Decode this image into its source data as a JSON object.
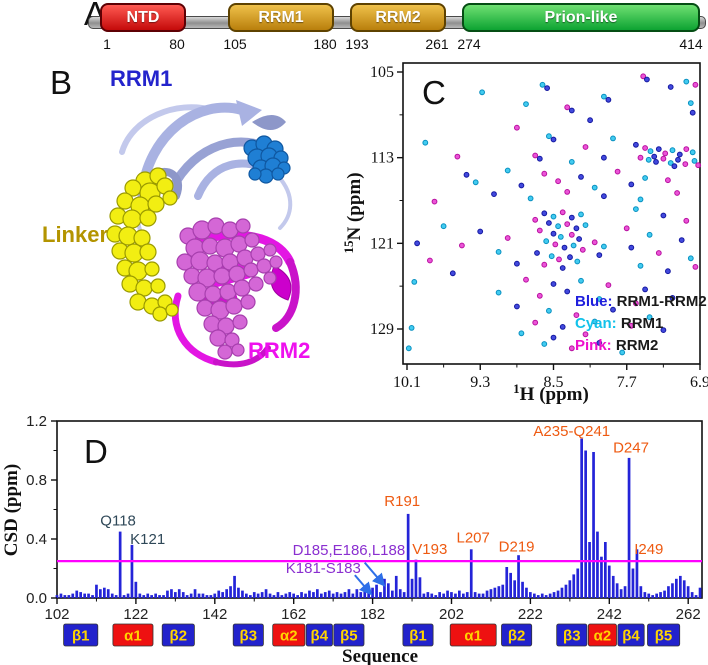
{
  "figure": {
    "panels": {
      "a": "A",
      "b": "B",
      "c": "C",
      "d": "D"
    }
  },
  "panelA": {
    "domains": [
      {
        "name": "NTD",
        "start": "1",
        "end": "80",
        "fill_top": "#ff5a52",
        "fill_bottom": "#c40a0a",
        "border": "#5e0004"
      },
      {
        "name": "RRM1",
        "start": "105",
        "end": "180",
        "fill_top": "#efc14a",
        "fill_bottom": "#b97f0c",
        "border": "#5e4200"
      },
      {
        "name": "RRM2",
        "start": "193",
        "end": "261",
        "fill_top": "#efc14a",
        "fill_bottom": "#b97f0c",
        "border": "#5e4200"
      },
      {
        "name": "Prion-like",
        "start": "274",
        "end": "414",
        "fill_top": "#6fe072",
        "fill_bottom": "#0da332",
        "border": "#054d14"
      }
    ]
  },
  "panelB": {
    "labels": {
      "rrm1": {
        "text": "RRM1",
        "color": "#2424cc"
      },
      "linker": {
        "text": "Linker",
        "color": "#b39400"
      },
      "rrm2": {
        "text": "RRM2",
        "color": "#ee10ee"
      }
    }
  },
  "panelC": {
    "xlabel_sup": "1",
    "xlabel_base": "H (ppm)",
    "ylabel_sup": "15",
    "ylabel_base": "N (ppm)",
    "legend": [
      {
        "key": "Blue:",
        "value": " RRM1-RRM2",
        "color": "#2020dd"
      },
      {
        "key": "Cyan:",
        "value": " RRM1",
        "color": "#12c2ea"
      },
      {
        "key": "Pink:",
        "value": " RRM2",
        "color": "#ee10cc"
      }
    ]
  },
  "panelD": {
    "ylabel": "CSD (ppm)",
    "xlabel": "Sequence"
  },
  "chart_data": [
    {
      "id": "panelC",
      "type": "scatter",
      "xlabel": "1H (ppm)",
      "ylabel": "15N (ppm)",
      "x_range": [
        10.1,
        6.9
      ],
      "y_range": [
        105,
        129
      ],
      "x_ticks": [
        10.1,
        9.3,
        8.5,
        7.7,
        6.9
      ],
      "y_ticks": [
        105,
        113,
        121,
        129
      ],
      "legend_position": "bottom-right",
      "series": [
        {
          "code": "b",
          "name": "RRM1-RRM2",
          "fill": "#2830d8",
          "stroke": "#1418a0"
        },
        {
          "code": "c",
          "name": "RRM1",
          "fill": "#28c4ee",
          "stroke": "#0890c0"
        },
        {
          "code": "p",
          "name": "RRM2",
          "fill": "#e83cd2",
          "stroke": "#b810a0"
        }
      ],
      "points": [
        [
          7.52,
          105.4,
          "p"
        ],
        [
          7.48,
          105.7,
          "b"
        ],
        [
          7.05,
          105.9,
          "c"
        ],
        [
          6.95,
          106.2,
          "p"
        ],
        [
          8.62,
          106.2,
          "c"
        ],
        [
          8.57,
          106.5,
          "b"
        ],
        [
          9.28,
          106.9,
          "c"
        ],
        [
          7.22,
          106.4,
          "b"
        ],
        [
          7.95,
          107.3,
          "c"
        ],
        [
          7.9,
          107.6,
          "b"
        ],
        [
          7.0,
          107.9,
          "c"
        ],
        [
          8.35,
          108.3,
          "p"
        ],
        [
          8.3,
          108.6,
          "b"
        ],
        [
          6.98,
          108.8,
          "b"
        ],
        [
          8.8,
          108.0,
          "c"
        ],
        [
          7.6,
          111.8,
          "b"
        ],
        [
          7.5,
          112.1,
          "p"
        ],
        [
          7.44,
          112.4,
          "c"
        ],
        [
          7.35,
          112.2,
          "b"
        ],
        [
          7.28,
          112.6,
          "p"
        ],
        [
          7.2,
          112.3,
          "c"
        ],
        [
          7.12,
          112.7,
          "b"
        ],
        [
          7.05,
          112.2,
          "p"
        ],
        [
          6.98,
          112.5,
          "c"
        ],
        [
          7.55,
          113.0,
          "p"
        ],
        [
          7.46,
          113.2,
          "c"
        ],
        [
          7.38,
          113.4,
          "b"
        ],
        [
          7.3,
          113.1,
          "p"
        ],
        [
          7.22,
          113.5,
          "c"
        ],
        [
          7.14,
          113.2,
          "b"
        ],
        [
          7.06,
          113.6,
          "p"
        ],
        [
          6.96,
          113.3,
          "c"
        ],
        [
          6.92,
          113.7,
          "p"
        ],
        [
          7.4,
          112.9,
          "b"
        ],
        [
          7.18,
          113.8,
          "b"
        ],
        [
          8.1,
          109.5,
          "b"
        ],
        [
          8.9,
          110.2,
          "p"
        ],
        [
          9.9,
          111.6,
          "c"
        ],
        [
          9.55,
          112.9,
          "p"
        ],
        [
          8.55,
          111.0,
          "c"
        ],
        [
          8.5,
          111.3,
          "b"
        ],
        [
          8.15,
          112.0,
          "p"
        ],
        [
          7.85,
          111.2,
          "c"
        ],
        [
          8.7,
          112.8,
          "p"
        ],
        [
          8.65,
          113.1,
          "b"
        ],
        [
          8.3,
          113.4,
          "c"
        ],
        [
          7.95,
          113.0,
          "b"
        ],
        [
          9.45,
          114.6,
          "b"
        ],
        [
          9.0,
          114.2,
          "c"
        ],
        [
          8.6,
          114.5,
          "p"
        ],
        [
          8.2,
          114.8,
          "b"
        ],
        [
          7.8,
          114.3,
          "p"
        ],
        [
          7.5,
          114.9,
          "c"
        ],
        [
          9.35,
          115.3,
          "c"
        ],
        [
          8.85,
          115.6,
          "b"
        ],
        [
          8.45,
          115.2,
          "p"
        ],
        [
          8.05,
          115.8,
          "c"
        ],
        [
          7.65,
          115.5,
          "b"
        ],
        [
          7.25,
          115.1,
          "p"
        ],
        [
          9.8,
          117.1,
          "p"
        ],
        [
          9.15,
          116.4,
          "b"
        ],
        [
          8.75,
          116.8,
          "c"
        ],
        [
          8.35,
          116.2,
          "p"
        ],
        [
          7.95,
          116.6,
          "b"
        ],
        [
          7.55,
          116.9,
          "c"
        ],
        [
          7.15,
          116.3,
          "p"
        ],
        [
          8.6,
          118.2,
          "b"
        ],
        [
          8.5,
          118.5,
          "c"
        ],
        [
          8.4,
          118.1,
          "p"
        ],
        [
          8.3,
          118.6,
          "b"
        ],
        [
          8.2,
          118.3,
          "c"
        ],
        [
          8.7,
          118.8,
          "p"
        ],
        [
          8.55,
          119.1,
          "b"
        ],
        [
          8.45,
          119.4,
          "c"
        ],
        [
          8.35,
          119.2,
          "p"
        ],
        [
          8.25,
          119.6,
          "b"
        ],
        [
          8.15,
          119.3,
          "c"
        ],
        [
          8.65,
          119.8,
          "p"
        ],
        [
          8.5,
          120.1,
          "b"
        ],
        [
          8.42,
          120.4,
          "c"
        ],
        [
          8.3,
          120.2,
          "p"
        ],
        [
          8.22,
          120.6,
          "b"
        ],
        [
          8.58,
          120.8,
          "c"
        ],
        [
          8.48,
          121.1,
          "p"
        ],
        [
          8.38,
          121.4,
          "b"
        ],
        [
          8.28,
          121.2,
          "c"
        ],
        [
          8.18,
          121.6,
          "p"
        ],
        [
          8.68,
          121.9,
          "b"
        ],
        [
          8.52,
          122.2,
          "c"
        ],
        [
          8.44,
          122.5,
          "p"
        ],
        [
          8.32,
          122.3,
          "b"
        ],
        [
          8.24,
          122.7,
          "c"
        ],
        [
          8.6,
          123.0,
          "p"
        ],
        [
          8.4,
          123.3,
          "b"
        ],
        [
          9.0,
          120.5,
          "p"
        ],
        [
          9.1,
          121.8,
          "c"
        ],
        [
          8.9,
          122.9,
          "b"
        ],
        [
          8.05,
          120.9,
          "p"
        ],
        [
          7.95,
          121.3,
          "c"
        ],
        [
          8.0,
          122.1,
          "b"
        ],
        [
          9.3,
          119.9,
          "b"
        ],
        [
          9.5,
          121.2,
          "p"
        ],
        [
          9.99,
          121.0,
          "b"
        ],
        [
          7.6,
          117.8,
          "c"
        ],
        [
          7.3,
          118.4,
          "b"
        ],
        [
          7.05,
          118.9,
          "p"
        ],
        [
          7.7,
          119.6,
          "p"
        ],
        [
          7.45,
          120.2,
          "c"
        ],
        [
          7.1,
          120.7,
          "b"
        ],
        [
          7.65,
          121.4,
          "b"
        ],
        [
          7.35,
          121.9,
          "p"
        ],
        [
          7.0,
          122.4,
          "c"
        ],
        [
          7.55,
          123.1,
          "c"
        ],
        [
          7.25,
          123.6,
          "b"
        ],
        [
          6.95,
          123.2,
          "p"
        ],
        [
          9.7,
          119.4,
          "c"
        ],
        [
          9.85,
          122.6,
          "p"
        ],
        [
          9.6,
          123.8,
          "b"
        ],
        [
          10.02,
          124.6,
          "c"
        ],
        [
          8.8,
          124.4,
          "p"
        ],
        [
          8.5,
          124.8,
          "b"
        ],
        [
          8.2,
          124.5,
          "c"
        ],
        [
          7.9,
          124.9,
          "p"
        ],
        [
          7.5,
          125.3,
          "b"
        ],
        [
          9.1,
          125.6,
          "c"
        ],
        [
          8.65,
          125.9,
          "p"
        ],
        [
          8.35,
          125.5,
          "b"
        ],
        [
          8.0,
          126.2,
          "c"
        ],
        [
          7.6,
          126.6,
          "p"
        ],
        [
          7.2,
          126.1,
          "b"
        ],
        [
          8.9,
          126.9,
          "b"
        ],
        [
          8.55,
          127.3,
          "c"
        ],
        [
          8.25,
          127.7,
          "p"
        ],
        [
          7.85,
          127.2,
          "b"
        ],
        [
          7.45,
          127.9,
          "c"
        ],
        [
          8.7,
          128.4,
          "p"
        ],
        [
          8.4,
          128.8,
          "b"
        ],
        [
          8.05,
          128.3,
          "c"
        ],
        [
          7.65,
          128.7,
          "p"
        ],
        [
          8.85,
          129.4,
          "c"
        ],
        [
          8.5,
          129.8,
          "b"
        ],
        [
          8.15,
          129.5,
          "p"
        ],
        [
          10.05,
          128.9,
          "c"
        ],
        [
          10.08,
          130.8,
          "c"
        ],
        [
          7.3,
          129.1,
          "b"
        ],
        [
          8.6,
          130.4,
          "c"
        ],
        [
          8.3,
          130.8,
          "p"
        ],
        [
          8.0,
          130.3,
          "b"
        ],
        [
          7.75,
          131.2,
          "c"
        ]
      ]
    },
    {
      "id": "panelD",
      "type": "bar",
      "xlabel": "Sequence",
      "ylabel": "CSD (ppm)",
      "ylim": [
        0,
        1.2
      ],
      "x_ticks": [
        102,
        122,
        142,
        162,
        182,
        202,
        222,
        242,
        262
      ],
      "y_ticks": [
        0.0,
        0.4,
        0.8,
        1.2
      ],
      "bar_color": "#2424d8",
      "threshold": 0.25,
      "threshold_color": "#ff00ff",
      "bars_start": 102,
      "bars": [
        0.02,
        0.03,
        0.02,
        0.02,
        0.03,
        0.05,
        0.04,
        0.03,
        0.03,
        0.02,
        0.09,
        0.06,
        0.07,
        0.06,
        0.03,
        0.02,
        0.45,
        0.02,
        0.03,
        0.36,
        0.11,
        0.03,
        0.02,
        0.03,
        0.02,
        0.03,
        0.02,
        0.02,
        0.05,
        0.06,
        0.04,
        0.06,
        0.04,
        0.02,
        0.03,
        0.06,
        0.03,
        0.03,
        0.02,
        0.02,
        0.03,
        0.05,
        0.04,
        0.06,
        0.08,
        0.15,
        0.07,
        0.05,
        0.03,
        0.02,
        0.04,
        0.03,
        0.04,
        0.06,
        0.03,
        0.02,
        0.04,
        0.02,
        0.03,
        0.04,
        0.03,
        0.02,
        0.04,
        0.03,
        0.05,
        0.04,
        0.06,
        0.03,
        0.04,
        0.05,
        0.03,
        0.04,
        0.03,
        0.04,
        0.06,
        0.03,
        0.06,
        0.04,
        0.05,
        0.08,
        0.07,
        0.09,
        0.04,
        0.13,
        0.1,
        0.05,
        0.15,
        0.06,
        0.04,
        0.57,
        0.13,
        0.26,
        0.14,
        0.03,
        0.04,
        0.03,
        0.02,
        0.04,
        0.03,
        0.05,
        0.04,
        0.03,
        0.05,
        0.03,
        0.04,
        0.33,
        0.04,
        0.03,
        0.03,
        0.05,
        0.06,
        0.07,
        0.08,
        0.09,
        0.21,
        0.17,
        0.12,
        0.29,
        0.11,
        0.07,
        0.04,
        0.03,
        0.02,
        0.03,
        0.02,
        0.03,
        0.04,
        0.05,
        0.07,
        0.09,
        0.12,
        0.16,
        0.2,
        1.08,
        1.0,
        0.38,
        0.99,
        0.45,
        0.28,
        0.38,
        0.22,
        0.15,
        0.1,
        0.06,
        0.08,
        0.95,
        0.2,
        0.33,
        0.08,
        0.04,
        0.03,
        0.02,
        0.03,
        0.04,
        0.05,
        0.08,
        0.1,
        0.13,
        0.15,
        0.12,
        0.08,
        0.04,
        0.02,
        0.07
      ],
      "annotations": [
        {
          "text": "Q118",
          "color": "#2f4858",
          "res": 117.5,
          "val": 0.49
        },
        {
          "text": "K121",
          "color": "#2f4858",
          "res": 125,
          "val": 0.365
        },
        {
          "text": "D185,E186,L188",
          "color": "#8a2fd0",
          "res": 176,
          "val": 0.29
        },
        {
          "text": "K181-S183",
          "color": "#8a2fd0",
          "res": 169.5,
          "val": 0.17
        },
        {
          "text": "R191",
          "color": "#ee5a11",
          "res": 189.5,
          "val": 0.625
        },
        {
          "text": "V193",
          "color": "#ee5a11",
          "res": 196.5,
          "val": 0.3
        },
        {
          "text": "L207",
          "color": "#ee5a11",
          "res": 207.5,
          "val": 0.375
        },
        {
          "text": "D219",
          "color": "#ee5a11",
          "res": 218.5,
          "val": 0.315
        },
        {
          "text": "A235-Q241",
          "color": "#ee5a11",
          "res": 232.5,
          "val": 1.1
        },
        {
          "text": "D247",
          "color": "#ee5a11",
          "res": 247.5,
          "val": 0.985
        },
        {
          "text": "I249",
          "color": "#ee5a11",
          "res": 252,
          "val": 0.3
        }
      ],
      "arrows": [
        {
          "from": [
            180.0,
            0.24
          ],
          "to": [
            184.8,
            0.09
          ],
          "color": "#2e6fe8"
        },
        {
          "from": [
            177.5,
            0.155
          ],
          "to": [
            181.5,
            0.03
          ],
          "color": "#2e6fe8"
        }
      ],
      "secondary_structure": [
        {
          "label": "β1",
          "type": "b",
          "from": 104,
          "to": 112
        },
        {
          "label": "α1",
          "type": "a",
          "from": 116.5,
          "to": 126
        },
        {
          "label": "β2",
          "type": "b",
          "from": 129,
          "to": 136.5
        },
        {
          "label": "β3",
          "type": "b",
          "from": 147,
          "to": 154
        },
        {
          "label": "α2",
          "type": "a",
          "from": 157,
          "to": 164.5
        },
        {
          "label": "β4",
          "type": "b",
          "from": 165.5,
          "to": 171.5
        },
        {
          "label": "β5",
          "type": "b",
          "from": 172.5,
          "to": 179.5
        },
        {
          "label": "β1",
          "type": "b",
          "from": 190,
          "to": 197
        },
        {
          "label": "α1",
          "type": "a",
          "from": 202,
          "to": 213
        },
        {
          "label": "β2",
          "type": "b",
          "from": 215,
          "to": 222
        },
        {
          "label": "β3",
          "type": "b",
          "from": 229,
          "to": 236
        },
        {
          "label": "α2",
          "type": "a",
          "from": 237,
          "to": 243.5
        },
        {
          "label": "β4",
          "type": "b",
          "from": 244.5,
          "to": 250.5
        },
        {
          "label": "β5",
          "type": "b",
          "from": 252,
          "to": 259.5
        }
      ],
      "ss_colors": {
        "a": "#ee1111",
        "b": "#2222cc",
        "text": "#ffd400"
      }
    }
  ]
}
